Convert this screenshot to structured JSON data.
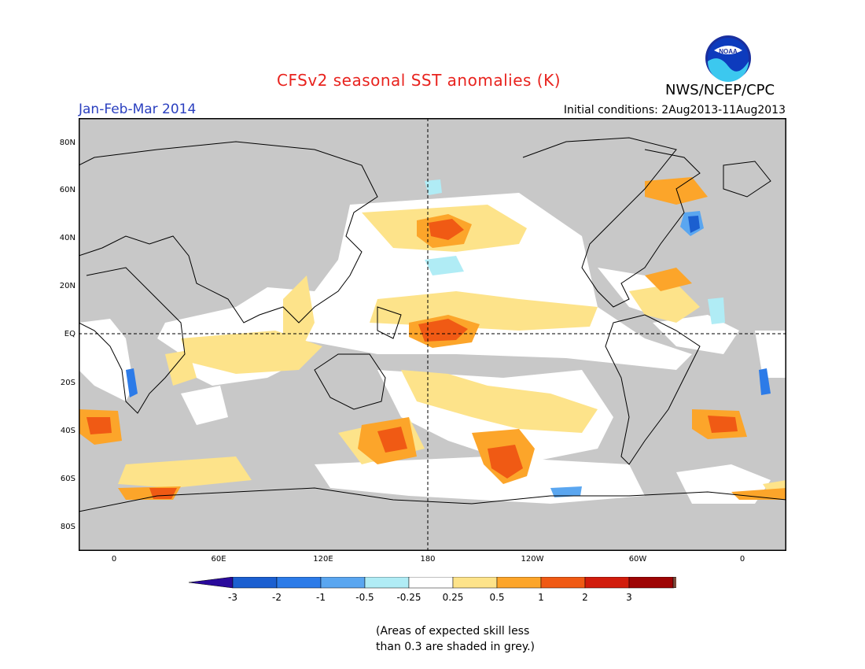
{
  "header": {
    "title": "CFSv2 seasonal SST anomalies (K)",
    "period": "Jan-Feb-Mar 2014",
    "initial_conditions": "Initial conditions: 2Aug2013-11Aug2013",
    "agency": "NWS/NCEP/CPC",
    "logo_text": "NOAA"
  },
  "map": {
    "latitude_labels": [
      "80N",
      "60N",
      "40N",
      "20N",
      "EQ",
      "20S",
      "40S",
      "60S",
      "80S"
    ],
    "longitude_labels": [
      "0",
      "60E",
      "120E",
      "180",
      "120W",
      "60W",
      "0"
    ],
    "colors": {
      "skill_grey": "#c8c8c8",
      "land": "#c8c8c8",
      "coast": "#000000"
    }
  },
  "colorbar": {
    "labels": [
      "-3",
      "-2",
      "-1",
      "-0.5",
      "-0.25",
      "0.25",
      "0.5",
      "1",
      "2",
      "3"
    ],
    "colors": [
      "#2a0a9c",
      "#1b5fd0",
      "#2c7be8",
      "#5aa6f0",
      "#b0ecf5",
      "#ffffff",
      "#fde38a",
      "#fca52a",
      "#f05a14",
      "#d11c0c",
      "#9e0404",
      "#7a4a3a"
    ]
  },
  "note": "(Areas of expected skill less\nthan 0.3 are shaded in grey.)"
}
